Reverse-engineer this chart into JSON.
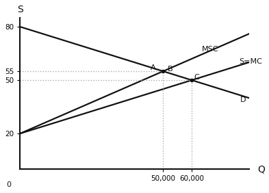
{
  "xlabel": "Q",
  "ylabel": "S",
  "xlim": [
    0,
    80000
  ],
  "ylim": [
    0,
    85
  ],
  "yticks": [
    20,
    50,
    55,
    80
  ],
  "xticks": [
    50000,
    60000
  ],
  "xtick_labels": [
    "50,000",
    "60,000"
  ],
  "ytick_labels": [
    "20",
    "50",
    "55",
    "80"
  ],
  "demand_intercept": 80,
  "demand_slope": -0.0005,
  "supply_intercept": 20,
  "supply_slope": 0.0005,
  "msc_intercept": 20,
  "msc_slope": 0.0007,
  "q_optimal": 50000,
  "p_optimal": 55,
  "q_competitive": 60000,
  "p_competitive": 50,
  "q_B": 53000,
  "point_A_label": "A",
  "point_B_label": "B",
  "point_C_label": "C",
  "label_MSC": "MSC",
  "label_SMC": "S=MC",
  "label_D": "D",
  "line_color": "#111111",
  "dotted_color": "#aaaaaa",
  "background_color": "#ffffff",
  "figsize": [
    3.93,
    2.82
  ],
  "dpi": 100
}
